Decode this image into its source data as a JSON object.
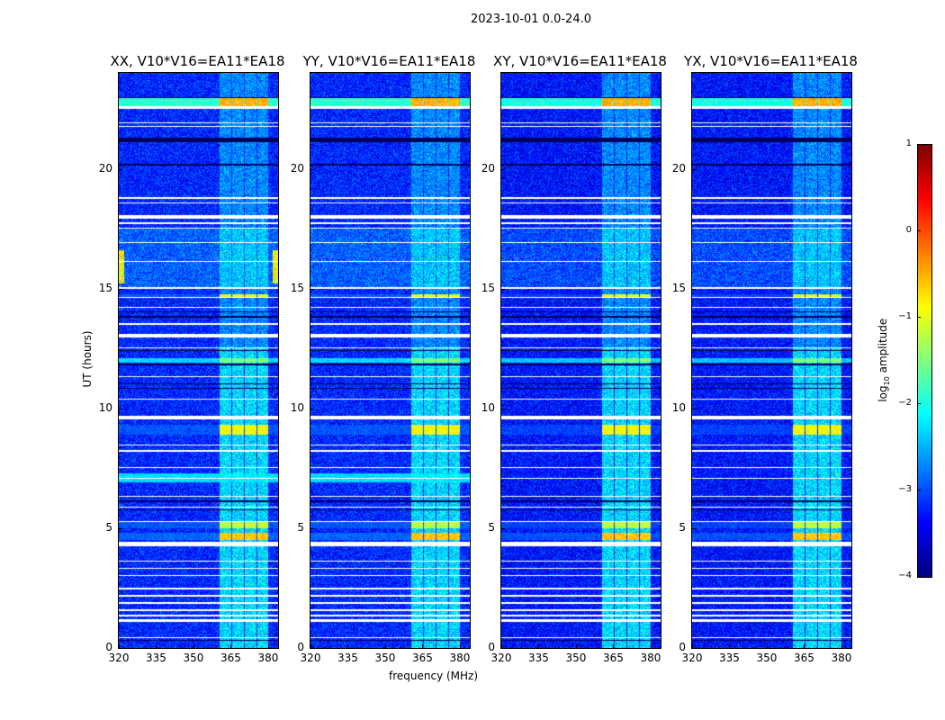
{
  "chart_data": {
    "type": "heatmap",
    "title": "2023-10-01 0.0-24.0",
    "xlabel": "frequency (MHz)",
    "ylabel": "UT (hours)",
    "xlim": [
      320,
      384
    ],
    "ylim": [
      0,
      24
    ],
    "xticks": [
      320,
      335,
      350,
      365,
      380
    ],
    "yticks": [
      0,
      5,
      10,
      15,
      20
    ],
    "panels": [
      {
        "title": "XX, V10*V16=EA11*EA18",
        "pol": "XX"
      },
      {
        "title": "YY, V10*V16=EA11*EA18",
        "pol": "YY"
      },
      {
        "title": "XY, V10*V16=EA11*EA18",
        "pol": "XY"
      },
      {
        "title": "YX, V10*V16=EA11*EA18",
        "pol": "YX"
      }
    ],
    "colorbar": {
      "label": "log10 amplitude",
      "label_main": "log",
      "label_sub": "10",
      "label_rest": " amplitude",
      "range": [
        -4,
        1
      ],
      "ticks": [
        "1",
        "0",
        "−1",
        "−2",
        "−3",
        "−4"
      ],
      "colormap": "jet"
    },
    "background_log_amp": -3.2,
    "bright_channels_mhz": [
      [
        360.4,
        365.1
      ],
      [
        365.5,
        370.2
      ],
      [
        370.6,
        375.3
      ],
      [
        375.7,
        380.0
      ]
    ],
    "flagged_times_hours": [
      [
        22.5,
        22.6
      ],
      [
        21.9,
        21.95
      ],
      [
        21.75,
        21.8
      ],
      [
        18.75,
        18.8
      ],
      [
        18.55,
        18.6
      ],
      [
        17.9,
        18.05
      ],
      [
        17.7,
        17.75
      ],
      [
        17.5,
        17.55
      ],
      [
        16.9,
        16.95
      ],
      [
        16.1,
        16.15
      ],
      [
        15.0,
        15.05
      ],
      [
        14.6,
        14.65
      ],
      [
        14.2,
        14.25
      ],
      [
        13.5,
        13.55
      ],
      [
        12.95,
        13.1
      ],
      [
        12.5,
        12.55
      ],
      [
        11.3,
        11.35
      ],
      [
        10.35,
        10.4
      ],
      [
        9.55,
        9.7
      ],
      [
        8.45,
        8.5
      ],
      [
        8.2,
        8.25
      ],
      [
        7.5,
        7.55
      ],
      [
        7.05,
        7.1
      ],
      [
        6.3,
        6.35
      ],
      [
        5.85,
        5.9
      ],
      [
        5.25,
        5.3
      ],
      [
        4.25,
        4.45
      ],
      [
        3.6,
        3.65
      ],
      [
        3.3,
        3.35
      ],
      [
        3.0,
        3.05
      ],
      [
        2.45,
        2.5
      ],
      [
        2.15,
        2.2
      ],
      [
        1.85,
        1.9
      ],
      [
        1.55,
        1.6
      ],
      [
        1.3,
        1.4
      ],
      [
        1.1,
        1.2
      ],
      [
        0.4,
        0.45
      ]
    ],
    "dark_times_hours": [
      [
        22.95,
        23.0
      ],
      [
        21.1,
        21.3
      ],
      [
        20.15,
        20.2
      ],
      [
        14.0,
        14.05
      ],
      [
        13.8,
        13.85
      ],
      [
        12.4,
        12.45
      ],
      [
        11.8,
        11.85
      ],
      [
        11.0,
        11.05
      ],
      [
        10.8,
        10.85
      ],
      [
        6.1,
        6.15
      ],
      [
        5.75,
        5.8
      ],
      [
        0.3,
        0.35
      ]
    ],
    "bright_events": [
      {
        "t": [
          22.6,
          22.95
        ],
        "all": -1.9,
        "chan": -0.5
      },
      {
        "t": [
          14.65,
          14.75
        ],
        "all": -3.0,
        "chan": -1.0
      },
      {
        "t": [
          4.5,
          4.8
        ],
        "all": -2.9,
        "chan": -0.6
      },
      {
        "t": [
          5.0,
          5.25
        ],
        "all": -3.0,
        "chan": -1.2
      },
      {
        "t": [
          8.9,
          9.3
        ],
        "all": -3.0,
        "chan": -0.9
      },
      {
        "t": [
          11.9,
          12.1
        ],
        "all": -2.3,
        "chan": -1.5
      }
    ]
  }
}
